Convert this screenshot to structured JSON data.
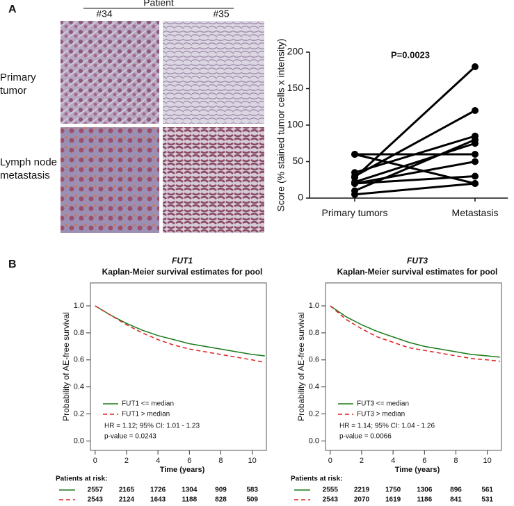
{
  "panel_a": {
    "label": "A",
    "patient_header": "Patient",
    "patients": [
      "#34",
      "#35"
    ],
    "rows": [
      "Primary tumor",
      "Lymph node metastasis"
    ]
  },
  "panel_b": {
    "label": "B"
  },
  "chart_data": [
    {
      "type": "line",
      "ylabel": "Score (% stained tumor cells x intensity)",
      "annotation": "P=0.0023",
      "categories": [
        "Primary tumors",
        "Metastasis"
      ],
      "ylim": [
        0,
        200
      ],
      "yticks": [
        0,
        50,
        100,
        150,
        200
      ],
      "color": "#000000",
      "series": [
        {
          "values": [
            60,
            60
          ]
        },
        {
          "values": [
            60,
            20
          ]
        },
        {
          "values": [
            35,
            85
          ]
        },
        {
          "values": [
            30,
            120
          ]
        },
        {
          "values": [
            28,
            180
          ]
        },
        {
          "values": [
            22,
            75
          ]
        },
        {
          "values": [
            20,
            50
          ]
        },
        {
          "values": [
            20,
            30
          ]
        },
        {
          "values": [
            10,
            80
          ]
        },
        {
          "values": [
            5,
            20
          ]
        }
      ]
    },
    {
      "type": "line",
      "title": "FUT1",
      "subtitle": "Kaplan-Meier survival estimates for pool",
      "xlabel": "Time (years)",
      "ylabel": "Probability of AE-free survival",
      "xlim": [
        -0.3,
        10.9
      ],
      "ylim": [
        -0.07,
        1.17
      ],
      "xticks": [
        0,
        2,
        4,
        6,
        8,
        10
      ],
      "yticks": [
        {
          "value": 0,
          "label": "0.0"
        },
        0.2,
        0.4,
        0.6,
        0.8,
        {
          "value": 1,
          "label": "1.0"
        }
      ],
      "x": [
        0,
        1,
        2,
        3,
        4,
        5,
        6,
        7,
        8,
        9,
        10,
        10.8
      ],
      "series": [
        {
          "name": "FUT1 <= median",
          "color": "#1a7a1a",
          "linestyle": "solid",
          "values": [
            1.0,
            0.93,
            0.87,
            0.82,
            0.78,
            0.75,
            0.72,
            0.7,
            0.68,
            0.66,
            0.64,
            0.63
          ]
        },
        {
          "name": "FUT1 > median",
          "color": "#e02020",
          "linestyle": "dashed",
          "values": [
            1.0,
            0.93,
            0.86,
            0.8,
            0.75,
            0.71,
            0.68,
            0.66,
            0.64,
            0.62,
            0.6,
            0.58
          ]
        }
      ],
      "annotations": [
        "HR = 1.12; 95% CI: 1.01 - 1.23",
        "p-value = 0.0243"
      ],
      "risk_table": {
        "title": "Patients at risk:",
        "rows": [
          [
            2557,
            2165,
            1726,
            1304,
            909,
            583
          ],
          [
            2543,
            2124,
            1643,
            1188,
            828,
            509
          ]
        ]
      }
    },
    {
      "type": "line",
      "title": "FUT3",
      "subtitle": "Kaplan-Meier survival estimates for pool",
      "xlabel": "Time (years)",
      "ylabel": "Probability of AE-free survival",
      "xlim": [
        -0.3,
        10.9
      ],
      "ylim": [
        -0.07,
        1.17
      ],
      "xticks": [
        0,
        2,
        4,
        6,
        8,
        10
      ],
      "yticks": [
        {
          "value": 0,
          "label": "0.0"
        },
        0.2,
        0.4,
        0.6,
        0.8,
        {
          "value": 1,
          "label": "1.0"
        }
      ],
      "x": [
        0,
        1,
        2,
        3,
        4,
        5,
        6,
        7,
        8,
        9,
        10,
        10.8
      ],
      "series": [
        {
          "name": "FUT3 <= median",
          "color": "#1a7a1a",
          "linestyle": "solid",
          "values": [
            1.0,
            0.92,
            0.86,
            0.81,
            0.77,
            0.73,
            0.7,
            0.68,
            0.66,
            0.64,
            0.63,
            0.62
          ]
        },
        {
          "name": "FUT3 > median",
          "color": "#e02020",
          "linestyle": "dashed",
          "values": [
            1.0,
            0.9,
            0.83,
            0.77,
            0.73,
            0.69,
            0.67,
            0.65,
            0.63,
            0.61,
            0.6,
            0.59
          ]
        }
      ],
      "annotations": [
        "HR = 1.14; 95% CI: 1.04 - 1.26",
        "p-value = 0.0066"
      ],
      "risk_table": {
        "title": "Patients at risk:",
        "rows": [
          [
            2555,
            2219,
            1750,
            1306,
            896,
            561
          ],
          [
            2543,
            2070,
            1619,
            1186,
            841,
            531
          ]
        ]
      }
    }
  ]
}
